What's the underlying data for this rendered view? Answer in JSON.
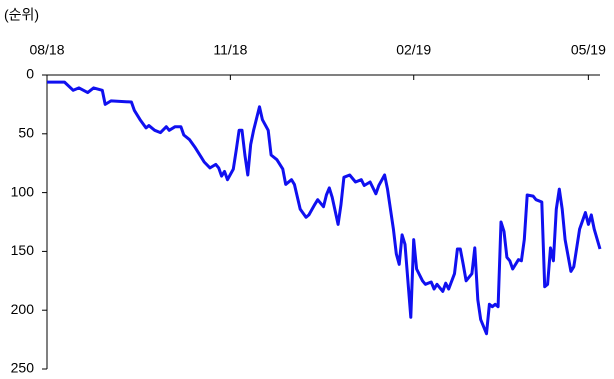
{
  "chart_data": {
    "type": "line",
    "ylabel": "(순위)",
    "x": [
      0,
      6,
      9,
      11,
      14,
      16,
      19,
      20,
      22,
      29,
      30,
      32,
      34,
      35,
      37,
      39,
      41,
      42,
      44,
      46,
      47,
      49,
      51,
      53,
      54,
      56,
      58,
      59,
      60,
      61,
      62,
      64,
      65,
      66,
      67,
      68,
      69,
      70,
      71,
      73,
      74,
      76,
      77,
      79,
      81,
      82,
      84,
      85,
      87,
      89,
      90,
      92,
      93,
      95,
      96,
      97,
      98,
      100,
      101,
      102,
      104,
      106,
      108,
      109,
      111,
      113,
      114,
      116,
      117,
      119,
      120,
      121,
      122,
      123,
      125,
      126,
      127,
      129,
      130,
      132,
      133,
      134,
      136,
      137,
      138,
      140,
      141,
      142,
      143,
      144,
      146,
      147,
      148,
      149,
      151,
      152,
      153,
      154,
      155,
      156,
      157,
      158,
      159,
      160,
      162,
      163,
      164,
      165,
      167,
      168,
      170,
      171,
      172,
      173,
      174,
      175,
      176,
      177,
      178,
      180,
      181,
      183,
      185,
      186,
      187,
      188,
      190
    ],
    "series": [
      {
        "color": "#1010f0",
        "values": [
          6,
          6,
          13,
          11,
          15,
          11,
          13,
          25,
          22,
          23,
          30,
          38,
          45,
          43,
          47,
          49,
          44,
          47,
          44,
          44,
          51,
          55,
          62,
          70,
          74,
          79,
          76,
          79,
          86,
          82,
          89,
          80,
          64,
          47,
          47,
          68,
          85,
          59,
          47,
          27,
          38,
          47,
          68,
          72,
          80,
          93,
          89,
          93,
          114,
          121,
          119,
          110,
          106,
          112,
          102,
          96,
          104,
          127,
          110,
          87,
          85,
          91,
          89,
          94,
          91,
          101,
          94,
          85,
          97,
          131,
          152,
          161,
          136,
          144,
          206,
          140,
          165,
          175,
          178,
          176,
          182,
          178,
          184,
          177,
          182,
          169,
          148,
          148,
          161,
          175,
          169,
          147,
          191,
          208,
          220,
          195,
          197,
          195,
          197,
          125,
          133,
          155,
          158,
          165,
          157,
          158,
          140,
          102,
          103,
          106,
          108,
          180,
          178,
          147,
          158,
          114,
          97,
          114,
          140,
          167,
          163,
          131,
          117,
          127,
          119,
          131,
          148
        ]
      }
    ],
    "xlim": [
      0,
      190
    ],
    "xticks": [
      {
        "value": 0,
        "label": "08/18"
      },
      {
        "value": 63,
        "label": "11/18"
      },
      {
        "value": 126,
        "label": "02/19"
      },
      {
        "value": 186,
        "label": "05/19"
      }
    ],
    "ylim": [
      0,
      250
    ],
    "yticks": [
      0,
      50,
      100,
      150,
      200,
      250
    ],
    "y_inverted": true
  }
}
